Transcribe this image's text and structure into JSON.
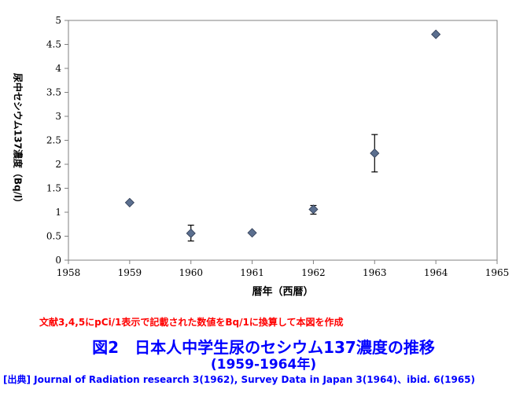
{
  "chart_data": {
    "type": "scatter",
    "xlabel": "暦年（西暦）",
    "ylabel": "尿中セシウム137濃度（Bq/l）",
    "xlim": [
      1958,
      1965
    ],
    "ylim": [
      0,
      5
    ],
    "x_ticks": [
      "1958",
      "1959",
      "1960",
      "1961",
      "1962",
      "1963",
      "1964",
      "1965"
    ],
    "y_ticks": [
      "0",
      "0.5",
      "1",
      "1.5",
      "2",
      "2.5",
      "3",
      "3.5",
      "4",
      "4.5",
      "5"
    ],
    "grid": false,
    "marker": "diamond",
    "marker_color": "#5b6f8f",
    "points": [
      {
        "x": 1959,
        "y": 1.2
      },
      {
        "x": 1960,
        "y": 0.56,
        "err_low": 0.4,
        "err_high": 0.73
      },
      {
        "x": 1961,
        "y": 0.57
      },
      {
        "x": 1962,
        "y": 1.06,
        "err_low": 0.96,
        "err_high": 1.14
      },
      {
        "x": 1963,
        "y": 2.23,
        "err_low": 1.84,
        "err_high": 2.62
      },
      {
        "x": 1964,
        "y": 4.71
      }
    ]
  },
  "note": "文献3,4,5にpCi/1表示で記載された数値をBq/1に換算して本図を作成",
  "figure_title": "図2　日本人中学生尿のセシウム137濃度の推移",
  "figure_subtitle": "(1959-1964年)",
  "source": "[出典] Journal of Radiation research 3(1962), Survey Data in Japan 3(1964)、ibid. 6(1965)",
  "colors": {
    "note": "#ff0000",
    "caption": "#0000ff",
    "marker": "#5b6f8f"
  }
}
